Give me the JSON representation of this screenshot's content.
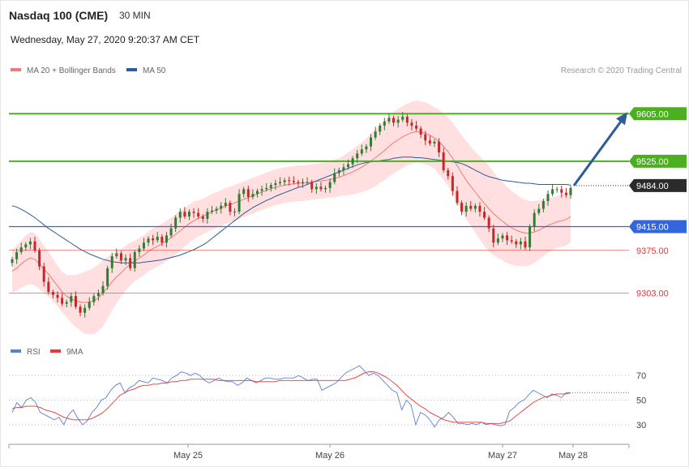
{
  "header": {
    "instrument": "Nasdaq 100 (CME)",
    "timeframe": "30 MIN",
    "datetime": "Wednesday, May 27, 2020 9:20:37 AM CET",
    "credit": "Research © 2020 Trading Central"
  },
  "colors": {
    "ma20": "#f07a78",
    "ma50": "#2e5c99",
    "band_fill": "#ffd9d9",
    "bull": "#2e7d32",
    "bear": "#c62828",
    "resistance": "#4caf20",
    "pivot": "#3366dd",
    "support": "#e53935",
    "current": "#2b2b2b",
    "rsi": "#5b7fd6",
    "rsi_ma": "#e53935",
    "arrow": "#2e5c99"
  },
  "chart_data": [
    {
      "type": "candlestick",
      "legend": [
        {
          "name": "MA 20 + Bollinger Bands",
          "color": "#f07a78"
        },
        {
          "name": "MA 50",
          "color": "#2e5c99"
        }
      ],
      "levels": [
        {
          "label": "9605.00",
          "value": 9605,
          "kind": "resistance"
        },
        {
          "label": "9525.00",
          "value": 9525,
          "kind": "resistance"
        },
        {
          "label": "9484.00",
          "value": 9484,
          "kind": "current"
        },
        {
          "label": "9415.00",
          "value": 9415,
          "kind": "pivot"
        },
        {
          "label": "9375.00",
          "value": 9375,
          "kind": "support"
        },
        {
          "label": "9303.00",
          "value": 9303,
          "kind": "support"
        }
      ],
      "ylim": [
        9230,
        9660
      ],
      "x_ticks": [
        "May 25",
        "May 26",
        "May 27",
        "May 28"
      ],
      "forecast_arrow": {
        "from": 9484,
        "to": 9605
      },
      "closes": [
        9360,
        9372,
        9380,
        9385,
        9390,
        9375,
        9348,
        9322,
        9305,
        9300,
        9295,
        9285,
        9288,
        9298,
        9280,
        9270,
        9278,
        9288,
        9298,
        9303,
        9315,
        9345,
        9365,
        9370,
        9358,
        9362,
        9345,
        9372,
        9378,
        9388,
        9395,
        9392,
        9398,
        9388,
        9400,
        9412,
        9430,
        9440,
        9432,
        9440,
        9438,
        9432,
        9428,
        9440,
        9442,
        9445,
        9450,
        9455,
        9440,
        9440,
        9470,
        9478,
        9465,
        9470,
        9475,
        9478,
        9480,
        9485,
        9488,
        9490,
        9493,
        9492,
        9490,
        9488,
        9490,
        9490,
        9478,
        9482,
        9478,
        9480,
        9490,
        9505,
        9510,
        9515,
        9520,
        9530,
        9538,
        9545,
        9550,
        9565,
        9575,
        9585,
        9592,
        9598,
        9590,
        9595,
        9600,
        9590,
        9585,
        9580,
        9570,
        9560,
        9555,
        9558,
        9540,
        9510,
        9500,
        9475,
        9455,
        9440,
        9450,
        9445,
        9450,
        9440,
        9430,
        9412,
        9388,
        9395,
        9400,
        9392,
        9390,
        9385,
        9390,
        9380,
        9415,
        9438,
        9445,
        9458,
        9470,
        9478,
        9478,
        9472,
        9468,
        9480
      ],
      "ma20": [
        9340,
        9345,
        9352,
        9358,
        9362,
        9360,
        9352,
        9343,
        9335,
        9325,
        9315,
        9305,
        9298,
        9293,
        9290,
        9288,
        9287,
        9288,
        9290,
        9295,
        9303,
        9312,
        9322,
        9330,
        9337,
        9345,
        9352,
        9357,
        9362,
        9367,
        9373,
        9378,
        9382,
        9386,
        9391,
        9396,
        9402,
        9408,
        9414,
        9420,
        9425,
        9429,
        9432,
        9436,
        9440,
        9443,
        9446,
        9450,
        9452,
        9455,
        9458,
        9461,
        9464,
        9467,
        9470,
        9473,
        9476,
        9479,
        9481,
        9483,
        9485,
        9486,
        9487,
        9488,
        9488,
        9489,
        9490,
        9491,
        9492,
        9493,
        9494,
        9496,
        9498,
        9501,
        9504,
        9507,
        9511,
        9515,
        9520,
        9525,
        9531,
        9537,
        9543,
        9550,
        9556,
        9561,
        9566,
        9570,
        9573,
        9575,
        9574,
        9572,
        9569,
        9564,
        9558,
        9550,
        9541,
        9530,
        9518,
        9505,
        9493,
        9483,
        9473,
        9463,
        9454,
        9445,
        9437,
        9430,
        9424,
        9418,
        9413,
        9409,
        9406,
        9404,
        9404,
        9406,
        9409,
        9413,
        9417,
        9420,
        9423,
        9425,
        9427,
        9432
      ],
      "ma50": [
        9450,
        9448,
        9444,
        9440,
        9435,
        9430,
        9424,
        9418,
        9412,
        9407,
        9402,
        9397,
        9392,
        9387,
        9382,
        9377,
        9373,
        9369,
        9366,
        9363,
        9360,
        9358,
        9356,
        9355,
        9354,
        9354,
        9354,
        9354,
        9354,
        9355,
        9356,
        9357,
        9358,
        9359,
        9361,
        9363,
        9365,
        9367,
        9370,
        9373,
        9376,
        9380,
        9384,
        9389,
        9395,
        9401,
        9407,
        9413,
        9419,
        9425,
        9431,
        9437,
        9442,
        9447,
        9451,
        9455,
        9459,
        9462,
        9466,
        9469,
        9472,
        9475,
        9478,
        9481,
        9483,
        9486,
        9489,
        9492,
        9495,
        9498,
        9501,
        9504,
        9507,
        9510,
        9513,
        9516,
        9519,
        9521,
        9523,
        9524,
        9525,
        9526,
        9527,
        9528,
        9530,
        9531,
        9532,
        9532,
        9532,
        9531,
        9531,
        9530,
        9529,
        9528,
        9527,
        9526,
        9525,
        9524,
        9523,
        9521,
        9518,
        9514,
        9510,
        9506,
        9502,
        9499,
        9497,
        9495,
        9493,
        9492,
        9491,
        9490,
        9489,
        9488,
        9488,
        9487,
        9486,
        9486,
        9486,
        9486,
        9486,
        9486,
        9486,
        9485
      ],
      "band": [
        36,
        38,
        40,
        42,
        44,
        44,
        42,
        40,
        38,
        36,
        34,
        34,
        36,
        40,
        44,
        48,
        52,
        54,
        56,
        56,
        56,
        52,
        48,
        44,
        40,
        38,
        36,
        34,
        34,
        34,
        34,
        34,
        34,
        34,
        34,
        34,
        34,
        34,
        32,
        32,
        32,
        30,
        30,
        30,
        30,
        30,
        30,
        30,
        30,
        30,
        30,
        30,
        30,
        30,
        30,
        30,
        30,
        30,
        30,
        30,
        30,
        30,
        30,
        30,
        30,
        30,
        30,
        30,
        30,
        30,
        30,
        32,
        32,
        34,
        36,
        38,
        40,
        42,
        44,
        46,
        48,
        48,
        50,
        50,
        52,
        52,
        52,
        52,
        52,
        52,
        52,
        52,
        52,
        52,
        54,
        56,
        58,
        60,
        62,
        64,
        66,
        66,
        68,
        70,
        72,
        72,
        70,
        68,
        66,
        64,
        62,
        60,
        58,
        56,
        54,
        52,
        50,
        48,
        46,
        44,
        44,
        44,
        44,
        44
      ]
    },
    {
      "type": "line",
      "legend": [
        {
          "name": "RSI",
          "color": "#5b7fd6"
        },
        {
          "name": "9MA",
          "color": "#e53935"
        }
      ],
      "yticks": [
        70,
        50,
        30
      ],
      "ylim": [
        18,
        82
      ],
      "rsi": [
        40,
        48,
        44,
        50,
        52,
        48,
        40,
        38,
        36,
        34,
        36,
        30,
        38,
        42,
        35,
        30,
        33,
        40,
        44,
        50,
        52,
        58,
        62,
        64,
        56,
        60,
        62,
        66,
        65,
        64,
        68,
        67,
        66,
        64,
        68,
        70,
        73,
        72,
        70,
        72,
        70,
        66,
        64,
        66,
        68,
        66,
        65,
        65,
        62,
        64,
        68,
        66,
        64,
        66,
        68,
        68,
        67,
        67,
        68,
        68,
        68,
        70,
        68,
        66,
        67,
        67,
        58,
        60,
        62,
        64,
        68,
        72,
        74,
        76,
        78,
        74,
        70,
        72,
        70,
        66,
        62,
        58,
        56,
        42,
        50,
        46,
        30,
        40,
        38,
        34,
        28,
        34,
        36,
        40,
        36,
        31,
        31,
        30,
        31,
        30,
        32,
        30,
        31,
        30,
        29,
        30,
        41,
        44,
        48,
        50,
        54,
        58,
        56,
        54,
        52,
        55,
        54,
        52,
        56,
        56
      ],
      "rsi_ma": [
        43,
        44,
        44,
        45,
        45,
        45,
        44,
        42,
        41,
        40,
        38,
        36,
        35,
        34,
        34,
        34,
        34,
        35,
        37,
        39,
        42,
        46,
        50,
        54,
        56,
        58,
        59,
        61,
        62,
        62,
        63,
        63,
        64,
        64,
        65,
        65,
        66,
        66,
        67,
        67,
        67,
        67,
        67,
        67,
        66,
        66,
        66,
        66,
        66,
        66,
        66,
        66,
        65,
        65,
        65,
        65,
        65,
        66,
        66,
        66,
        66,
        66,
        66,
        66,
        66,
        66,
        66,
        66,
        66,
        66,
        66,
        66,
        67,
        68,
        70,
        72,
        73,
        73,
        72,
        70,
        68,
        65,
        62,
        58,
        54,
        51,
        48,
        45,
        43,
        40,
        38,
        36,
        34,
        33,
        32,
        32,
        32,
        32,
        32,
        32,
        32,
        31,
        31,
        31,
        31,
        32,
        33,
        36,
        39,
        42,
        45,
        48,
        50,
        52,
        53,
        54,
        55,
        55,
        55,
        56
      ]
    }
  ]
}
